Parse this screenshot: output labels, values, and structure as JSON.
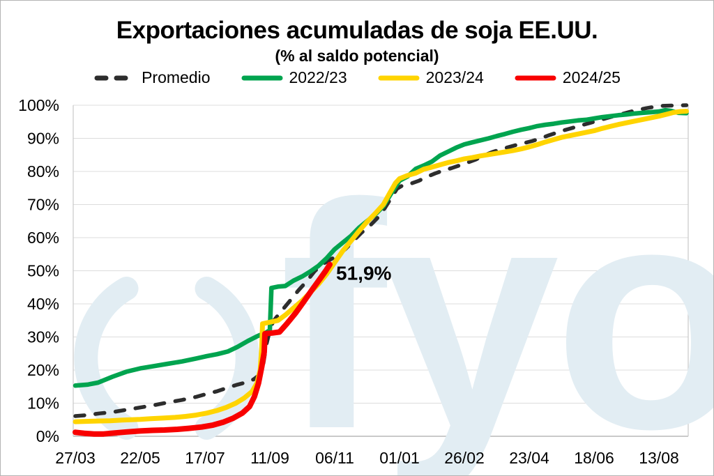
{
  "title": "Exportaciones acumuladas de soja EE.UU.",
  "subtitle": "(% al saldo potencial)",
  "watermark": {
    "text": "fyo",
    "color": "#e2edf3"
  },
  "chart_data": {
    "type": "line",
    "title": "Exportaciones acumuladas de soja EE.UU.",
    "subtitle": "(% al saldo potencial)",
    "legend_position": "top",
    "grid": "horizontal",
    "x_axis": {
      "tick_labels": [
        "27/03",
        "22/05",
        "17/07",
        "11/09",
        "06/11",
        "01/01",
        "26/02",
        "23/04",
        "18/06",
        "13/08"
      ],
      "tick_interval_weeks": 8,
      "unit": "semana (fecha)"
    },
    "y_axis": {
      "tick_labels": [
        "0%",
        "10%",
        "20%",
        "30%",
        "40%",
        "50%",
        "60%",
        "70%",
        "80%",
        "90%",
        "100%"
      ],
      "min": 0,
      "max": 100,
      "unit": "%"
    },
    "annotation": {
      "text": "51,9%",
      "attached_to": "2024/25",
      "value": 51.9
    },
    "series": [
      {
        "name": "Promedio",
        "color": "#2d2d2d",
        "style": "dashed",
        "width": 5.5,
        "points": [
          [
            0,
            6.1
          ],
          [
            1.5,
            6.4
          ],
          [
            3,
            6.9
          ],
          [
            4.6,
            7.3
          ],
          [
            6.3,
            8
          ],
          [
            8,
            8.7
          ],
          [
            9.7,
            9.4
          ],
          [
            11.4,
            10.2
          ],
          [
            13.2,
            11
          ],
          [
            14.9,
            11.9
          ],
          [
            16.2,
            12.8
          ],
          [
            17.5,
            13.6
          ],
          [
            18.8,
            14.7
          ],
          [
            20,
            15.6
          ],
          [
            21.1,
            16.3
          ],
          [
            22,
            17.2
          ],
          [
            22.7,
            18.5
          ],
          [
            23.2,
            22
          ],
          [
            23.6,
            28
          ],
          [
            24.1,
            33
          ],
          [
            24.5,
            35
          ],
          [
            25.5,
            38
          ],
          [
            26.5,
            41
          ],
          [
            27.5,
            44
          ],
          [
            28.6,
            47
          ],
          [
            29.5,
            49.8
          ],
          [
            30.5,
            52
          ],
          [
            31.4,
            53.3
          ],
          [
            32.3,
            54.5
          ],
          [
            33.3,
            56.5
          ],
          [
            34.3,
            59
          ],
          [
            35.3,
            61.5
          ],
          [
            36.3,
            63.5
          ],
          [
            37.3,
            66
          ],
          [
            38.2,
            69
          ],
          [
            39.1,
            72.5
          ],
          [
            39.7,
            74.8
          ],
          [
            40.4,
            75.8
          ],
          [
            41.5,
            76.4
          ],
          [
            42.4,
            77.2
          ],
          [
            43.4,
            78.4
          ],
          [
            44.4,
            79.4
          ],
          [
            45.4,
            80.3
          ],
          [
            46.4,
            81
          ],
          [
            47.4,
            81.8
          ],
          [
            48.4,
            82.7
          ],
          [
            49.4,
            83.6
          ],
          [
            50.4,
            84.8
          ],
          [
            51.4,
            85.8
          ],
          [
            52.4,
            86.6
          ],
          [
            53.4,
            87.3
          ],
          [
            54.4,
            88
          ],
          [
            55.4,
            88.6
          ],
          [
            56.4,
            89.2
          ],
          [
            57.4,
            90
          ],
          [
            58.4,
            90.9
          ],
          [
            59.4,
            91.7
          ],
          [
            60.4,
            92.5
          ],
          [
            61.4,
            93.2
          ],
          [
            62.4,
            93.9
          ],
          [
            63.4,
            94.6
          ],
          [
            64.4,
            95.3
          ],
          [
            65.4,
            96
          ],
          [
            66.4,
            96.7
          ],
          [
            67.4,
            97.3
          ],
          [
            68.4,
            98
          ],
          [
            69.4,
            98.6
          ],
          [
            70.4,
            99.1
          ],
          [
            71.4,
            99.5
          ],
          [
            72.4,
            99.8
          ],
          [
            73.5,
            99.9
          ],
          [
            75.4,
            100
          ]
        ]
      },
      {
        "name": "2022/23",
        "color": "#00a44f",
        "style": "solid",
        "width": 6.5,
        "points": [
          [
            0,
            15.3
          ],
          [
            1.5,
            15.6
          ],
          [
            2.8,
            16.2
          ],
          [
            4.6,
            18
          ],
          [
            6.3,
            19.5
          ],
          [
            8,
            20.5
          ],
          [
            9.7,
            21.2
          ],
          [
            11.4,
            21.9
          ],
          [
            13.2,
            22.6
          ],
          [
            14.9,
            23.5
          ],
          [
            16.2,
            24.2
          ],
          [
            17.5,
            24.8
          ],
          [
            18.8,
            25.6
          ],
          [
            20,
            27
          ],
          [
            21.3,
            28.8
          ],
          [
            22.5,
            30.3
          ],
          [
            23.5,
            31.3
          ],
          [
            24,
            32
          ],
          [
            24.2,
            44.8
          ],
          [
            25,
            45.2
          ],
          [
            25.9,
            45.4
          ],
          [
            26.9,
            47
          ],
          [
            28,
            48.3
          ],
          [
            29,
            49.8
          ],
          [
            30,
            51.5
          ],
          [
            31,
            53.8
          ],
          [
            32,
            56.5
          ],
          [
            33,
            58.5
          ],
          [
            34,
            60.5
          ],
          [
            35,
            63
          ],
          [
            36,
            65
          ],
          [
            37,
            67
          ],
          [
            38,
            69.5
          ],
          [
            39,
            73.5
          ],
          [
            40,
            77.2
          ],
          [
            41,
            78.5
          ],
          [
            42,
            80.8
          ],
          [
            43,
            81.8
          ],
          [
            44,
            83
          ],
          [
            45,
            84.8
          ],
          [
            46,
            86
          ],
          [
            47,
            87.2
          ],
          [
            48,
            88.2
          ],
          [
            49,
            88.8
          ],
          [
            50,
            89.4
          ],
          [
            51,
            90
          ],
          [
            52,
            90.7
          ],
          [
            53,
            91.3
          ],
          [
            54,
            92
          ],
          [
            55,
            92.6
          ],
          [
            56,
            93.1
          ],
          [
            57,
            93.7
          ],
          [
            58,
            94.1
          ],
          [
            59,
            94.4
          ],
          [
            60,
            94.8
          ],
          [
            61,
            95.1
          ],
          [
            62,
            95.4
          ],
          [
            63,
            95.6
          ],
          [
            64,
            96
          ],
          [
            65,
            96.4
          ],
          [
            66,
            96.7
          ],
          [
            67,
            97
          ],
          [
            68,
            97.2
          ],
          [
            69,
            97.5
          ],
          [
            70,
            97.7
          ],
          [
            71,
            97.9
          ],
          [
            72,
            98.1
          ],
          [
            72.8,
            98.5
          ],
          [
            73.5,
            98.3
          ],
          [
            74.4,
            97.7
          ],
          [
            75.4,
            97.6
          ]
        ]
      },
      {
        "name": "2023/24",
        "color": "#ffd400",
        "style": "solid",
        "width": 7,
        "points": [
          [
            0,
            4.4
          ],
          [
            1.3,
            4.5
          ],
          [
            2.8,
            4.6
          ],
          [
            4.3,
            4.7
          ],
          [
            5.8,
            4.9
          ],
          [
            8,
            5.1
          ],
          [
            9.3,
            5.3
          ],
          [
            10.8,
            5.5
          ],
          [
            12.3,
            5.7
          ],
          [
            13.6,
            6
          ],
          [
            14.9,
            6.4
          ],
          [
            16.2,
            7
          ],
          [
            17.5,
            7.8
          ],
          [
            18.6,
            8.7
          ],
          [
            19.8,
            10
          ],
          [
            20.8,
            11.5
          ],
          [
            21.8,
            13.5
          ],
          [
            22.4,
            16
          ],
          [
            22.8,
            20
          ],
          [
            23,
            27
          ],
          [
            23.1,
            34
          ],
          [
            23.9,
            34.4
          ],
          [
            25,
            35
          ],
          [
            25.9,
            36.6
          ],
          [
            26.9,
            38.7
          ],
          [
            28,
            41
          ],
          [
            29,
            43.5
          ],
          [
            30,
            46
          ],
          [
            31,
            49
          ],
          [
            32,
            52.5
          ],
          [
            33,
            56
          ],
          [
            34,
            59
          ],
          [
            35,
            62
          ],
          [
            36,
            64.8
          ],
          [
            37,
            67.3
          ],
          [
            38,
            70
          ],
          [
            38.8,
            73.5
          ],
          [
            39.5,
            76.5
          ],
          [
            40,
            77.8
          ],
          [
            41,
            78.8
          ],
          [
            42,
            79.5
          ],
          [
            43,
            80.7
          ],
          [
            44,
            81.3
          ],
          [
            45,
            82
          ],
          [
            46,
            82.7
          ],
          [
            47,
            83.2
          ],
          [
            48,
            83.8
          ],
          [
            49,
            84.2
          ],
          [
            50,
            84.7
          ],
          [
            51,
            85.1
          ],
          [
            52,
            85.5
          ],
          [
            53,
            85.9
          ],
          [
            54,
            86.3
          ],
          [
            55,
            86.8
          ],
          [
            56,
            87.4
          ],
          [
            57,
            88.1
          ],
          [
            58,
            88.9
          ],
          [
            59,
            89.6
          ],
          [
            60,
            90.3
          ],
          [
            61,
            90.8
          ],
          [
            62,
            91.3
          ],
          [
            63,
            91.8
          ],
          [
            64,
            92.3
          ],
          [
            65,
            93
          ],
          [
            66,
            93.6
          ],
          [
            67,
            94.2
          ],
          [
            68,
            94.7
          ],
          [
            69,
            95.2
          ],
          [
            70,
            95.7
          ],
          [
            71,
            96.2
          ],
          [
            72,
            96.7
          ],
          [
            73,
            97.3
          ],
          [
            73.8,
            97.8
          ],
          [
            74.7,
            98.1
          ],
          [
            75.4,
            98.2
          ]
        ]
      },
      {
        "name": "2024/25",
        "color": "#f80000",
        "style": "solid",
        "width": 8,
        "points": [
          [
            0,
            1.2
          ],
          [
            1.1,
            0.9
          ],
          [
            2.3,
            0.7
          ],
          [
            3.5,
            0.7
          ],
          [
            4.8,
            1
          ],
          [
            6.3,
            1.3
          ],
          [
            8,
            1.6
          ],
          [
            9.5,
            1.8
          ],
          [
            11,
            1.9
          ],
          [
            12.6,
            2.1
          ],
          [
            14,
            2.4
          ],
          [
            15.6,
            2.8
          ],
          [
            17,
            3.4
          ],
          [
            18.3,
            4.3
          ],
          [
            19.5,
            5.5
          ],
          [
            20.6,
            7
          ],
          [
            21.5,
            9
          ],
          [
            22.1,
            12
          ],
          [
            22.6,
            16
          ],
          [
            23,
            21
          ],
          [
            23.3,
            25.4
          ],
          [
            23.4,
            31
          ],
          [
            24.3,
            31.2
          ],
          [
            25.2,
            31.5
          ],
          [
            26.1,
            34
          ],
          [
            27.2,
            37.3
          ],
          [
            28.2,
            40.7
          ],
          [
            29.2,
            44.2
          ],
          [
            30.2,
            47.6
          ],
          [
            30.9,
            50
          ],
          [
            31.4,
            51.9
          ]
        ]
      }
    ]
  }
}
